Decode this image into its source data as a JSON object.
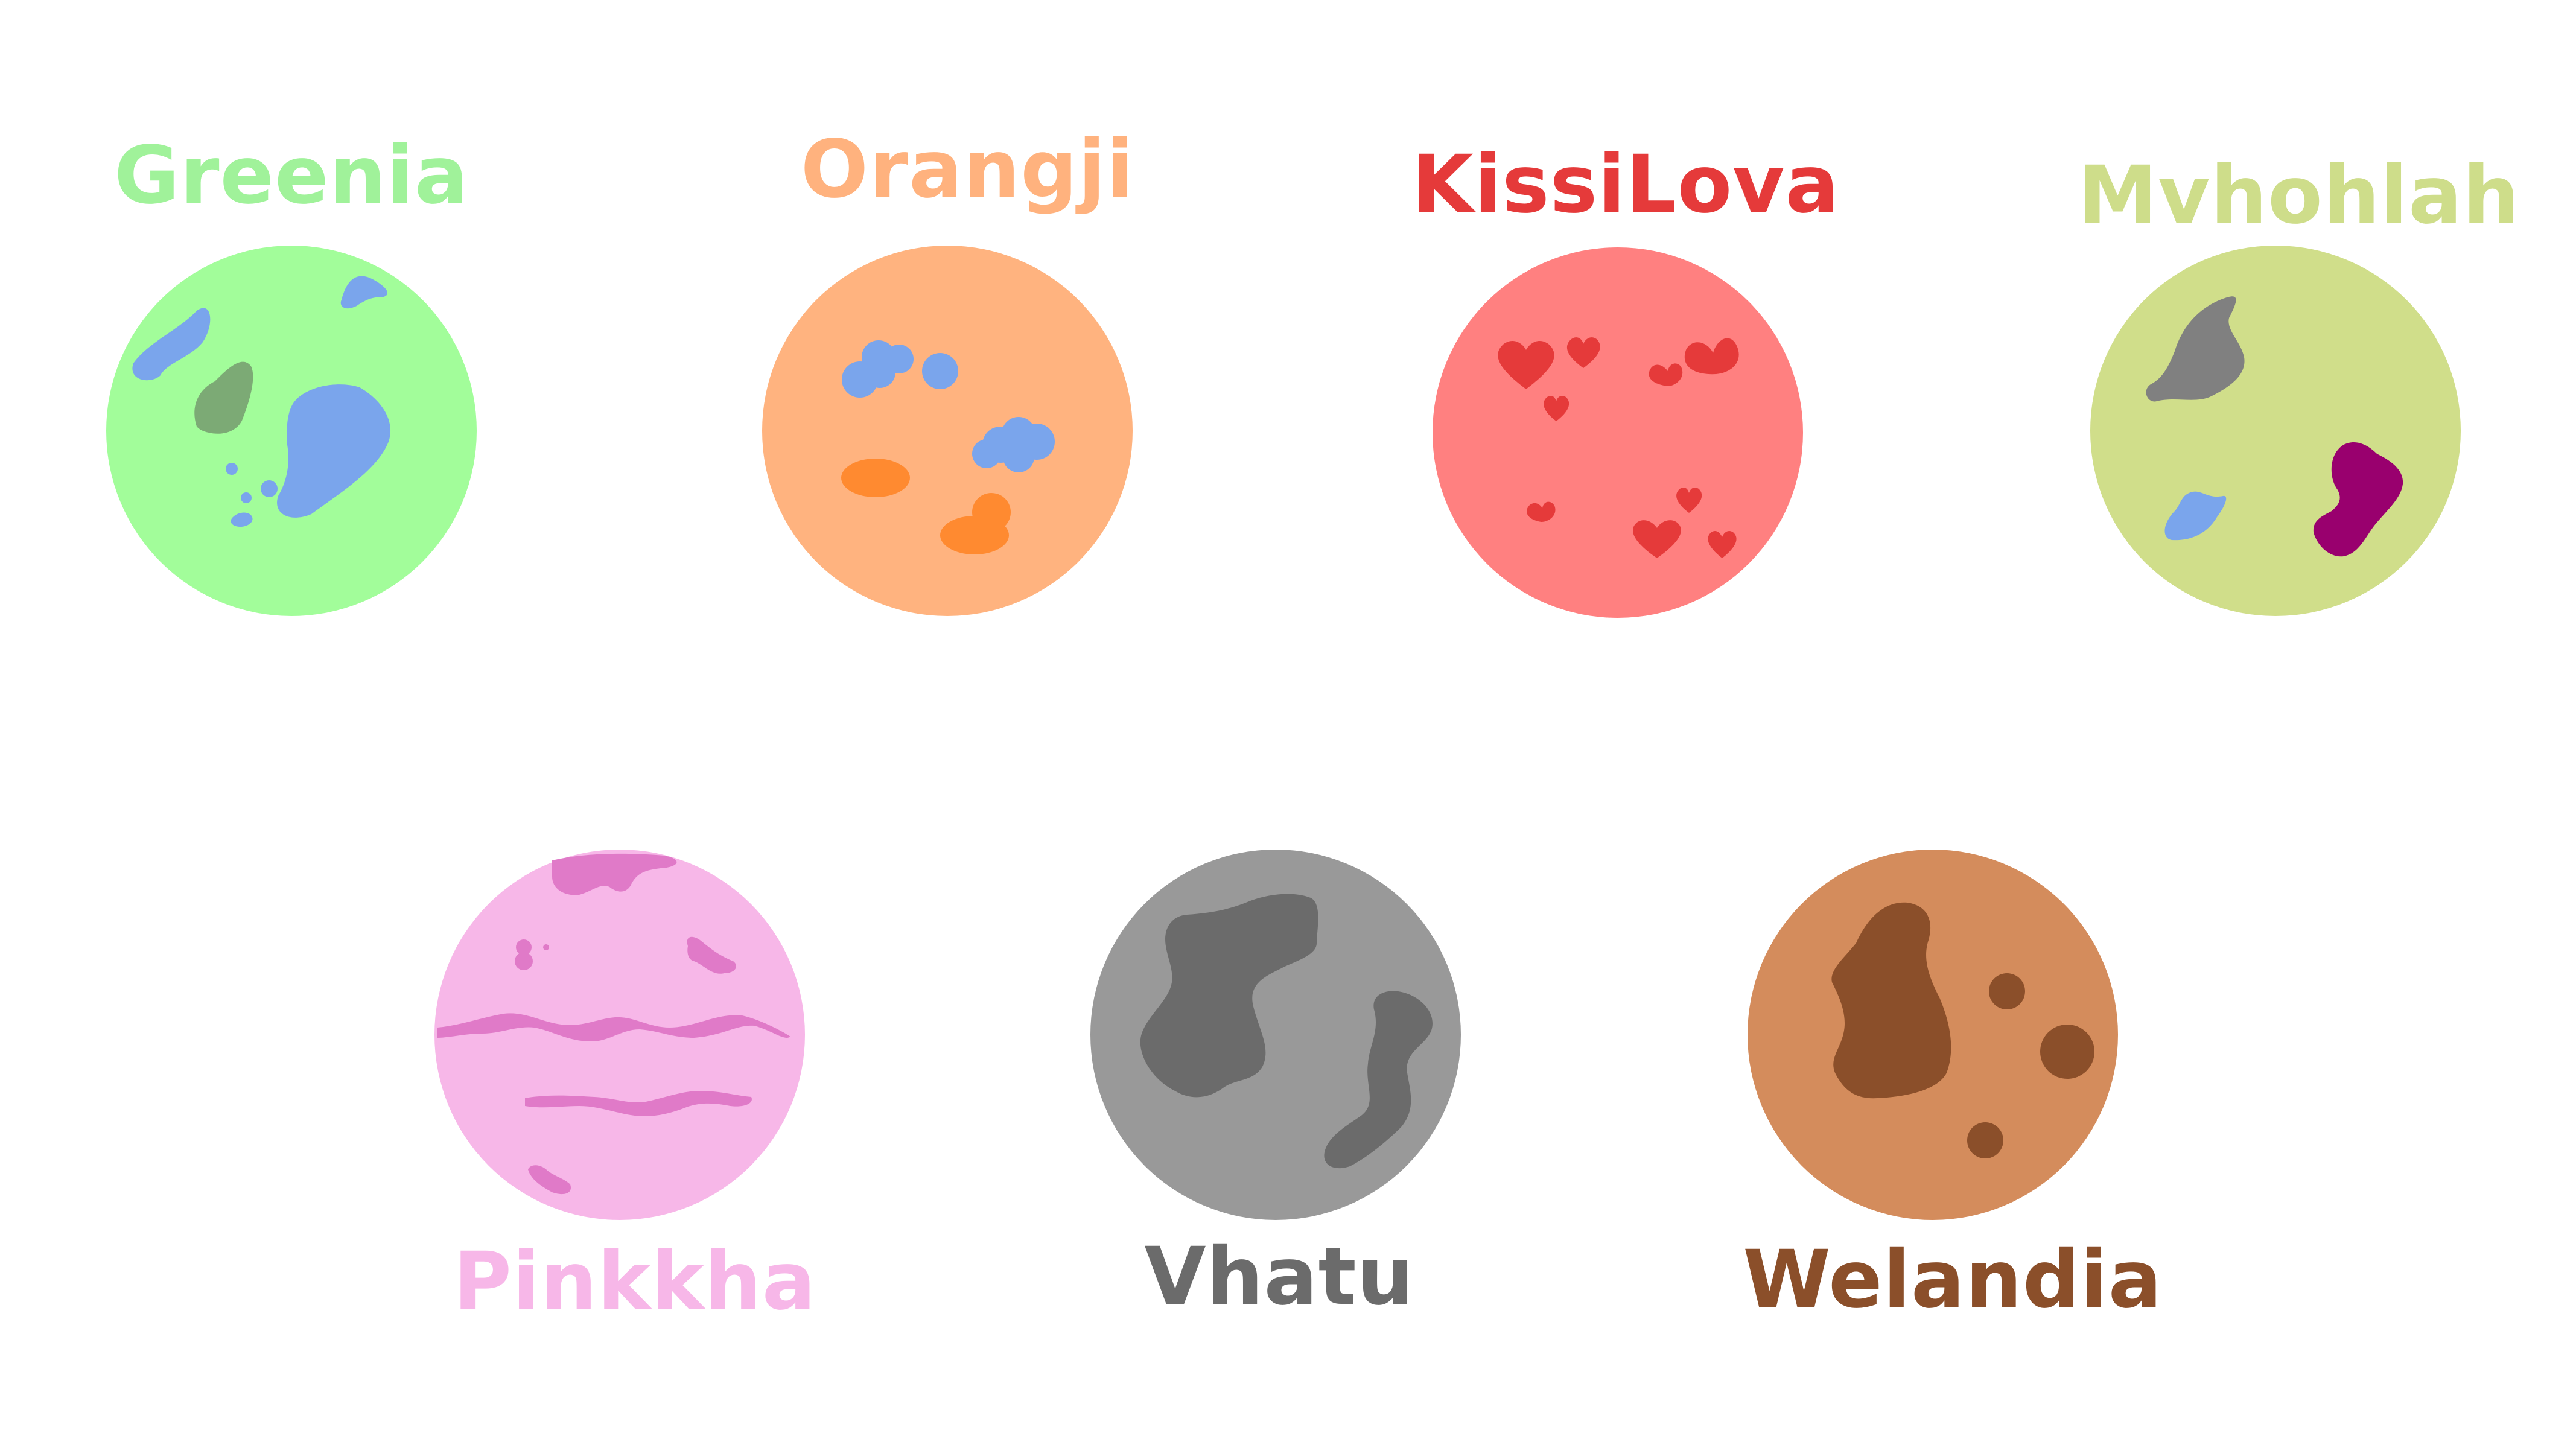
{
  "planets": [
    {
      "id": "greenia",
      "name": "Greenia",
      "label_color": "#A0F29A",
      "body_color": "#A2FD9A"
    },
    {
      "id": "orangji",
      "name": "Orangji",
      "label_color": "#FFB27E",
      "body_color": "#FFB37F"
    },
    {
      "id": "kissilova",
      "name": "KissiLova",
      "label_color": "#E53A3A",
      "body_color": "#FF8080"
    },
    {
      "id": "mvhohlah",
      "name": "Mvhohlah",
      "label_color": "#CEDD8A",
      "body_color": "#D0DE8A"
    },
    {
      "id": "pinkkha",
      "name": "Pinkkha",
      "label_color": "#F7B7E8",
      "body_color": "#F7B7E8"
    },
    {
      "id": "vhatu",
      "name": "Vhatu",
      "label_color": "#6B6B6B",
      "body_color": "#999999"
    },
    {
      "id": "welandia",
      "name": "Welandia",
      "label_color": "#8B4F2A",
      "body_color": "#D48C5C"
    }
  ],
  "colors": {
    "water_blue": "#7AA5EC",
    "dark_green": "#7CAA75",
    "orange_spot": "#FF8A30",
    "heart_red": "#E53A3A",
    "rock_gray": "#808080",
    "magenta": "#99006E",
    "pink_stripe": "#E07AC8",
    "vhatu_dark": "#6B6B6B",
    "welandia_brown": "#8B4F2A"
  }
}
